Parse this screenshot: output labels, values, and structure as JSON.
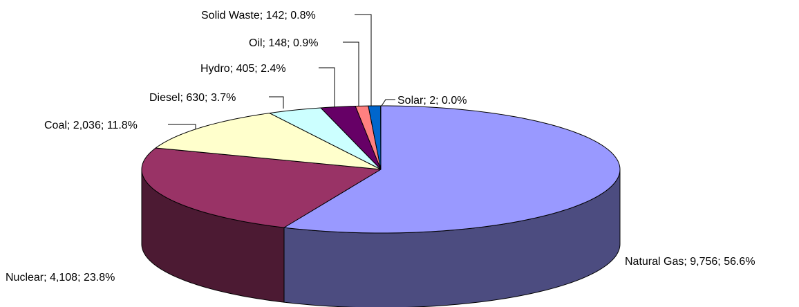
{
  "chart_data": {
    "type": "pie",
    "style": "3d",
    "slices": [
      {
        "name": "Natural Gas",
        "value": 9756,
        "percent": 56.6,
        "label": "Natural Gas; 9,756; 56.6%",
        "color": "#9999ff",
        "side_color": "#4c4c80"
      },
      {
        "name": "Nuclear",
        "value": 4108,
        "percent": 23.8,
        "label": "Nuclear; 4,108; 23.8%",
        "color": "#993366",
        "side_color": "#4c1a33"
      },
      {
        "name": "Coal",
        "value": 2036,
        "percent": 11.8,
        "label": "Coal; 2,036; 11.8%",
        "color": "#ffffcc",
        "side_color": "#808066"
      },
      {
        "name": "Diesel",
        "value": 630,
        "percent": 3.7,
        "label": "Diesel; 630; 3.7%",
        "color": "#ccffff",
        "side_color": "#668080"
      },
      {
        "name": "Hydro",
        "value": 405,
        "percent": 2.4,
        "label": "Hydro; 405; 2.4%",
        "color": "#660066",
        "side_color": "#330033"
      },
      {
        "name": "Oil",
        "value": 148,
        "percent": 0.9,
        "label": "Oil; 148; 0.9%",
        "color": "#ff8080",
        "side_color": "#804040"
      },
      {
        "name": "Solid Waste",
        "value": 142,
        "percent": 0.8,
        "label": "Solid Waste; 142; 0.8%",
        "color": "#0066cc",
        "side_color": "#003366"
      },
      {
        "name": "Solar",
        "value": 2,
        "percent": 0.0,
        "label": "Solar; 2; 0.0%",
        "color": "#ccccff",
        "side_color": "#666680"
      }
    ],
    "start": "12 o'clock",
    "direction": "clockwise",
    "legend": "none"
  }
}
